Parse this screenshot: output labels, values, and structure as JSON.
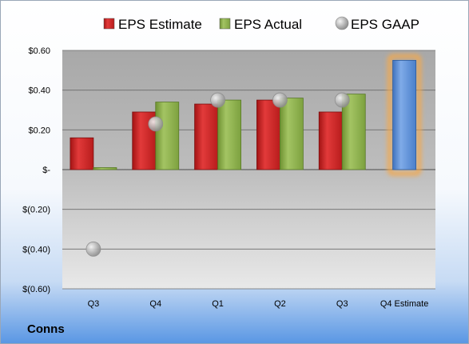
{
  "company": "Conns",
  "chart_data": {
    "type": "bar",
    "categories": [
      "Q3",
      "Q4",
      "Q1",
      "Q2",
      "Q3",
      "Q4 Estimate"
    ],
    "series": [
      {
        "name": "EPS Estimate",
        "color": "#d42a2a",
        "values": [
          0.16,
          0.29,
          0.33,
          0.35,
          0.29,
          null
        ]
      },
      {
        "name": "EPS Actual",
        "color": "#8db04b",
        "values": [
          0.01,
          0.34,
          0.35,
          0.36,
          0.38,
          null
        ]
      },
      {
        "name": "EPS GAAP",
        "color": "#b8b8b8",
        "marker": "circle",
        "values": [
          -0.4,
          0.23,
          0.35,
          0.35,
          0.35,
          null
        ]
      }
    ],
    "estimate_bar": {
      "category": "Q4 Estimate",
      "value": 0.55,
      "color": "#5b8fd6",
      "glow": "#f2a950"
    },
    "yticks": [
      0.6,
      0.4,
      0.2,
      0,
      -0.2,
      -0.4,
      -0.6
    ],
    "ytick_labels": [
      "$0.60",
      "$0.40",
      "$0.20",
      "$-",
      "$(0.20)",
      "$(0.40)",
      "$(0.60)"
    ],
    "ylim": [
      -0.6,
      0.6
    ],
    "grid": true,
    "legend_position": "top"
  }
}
